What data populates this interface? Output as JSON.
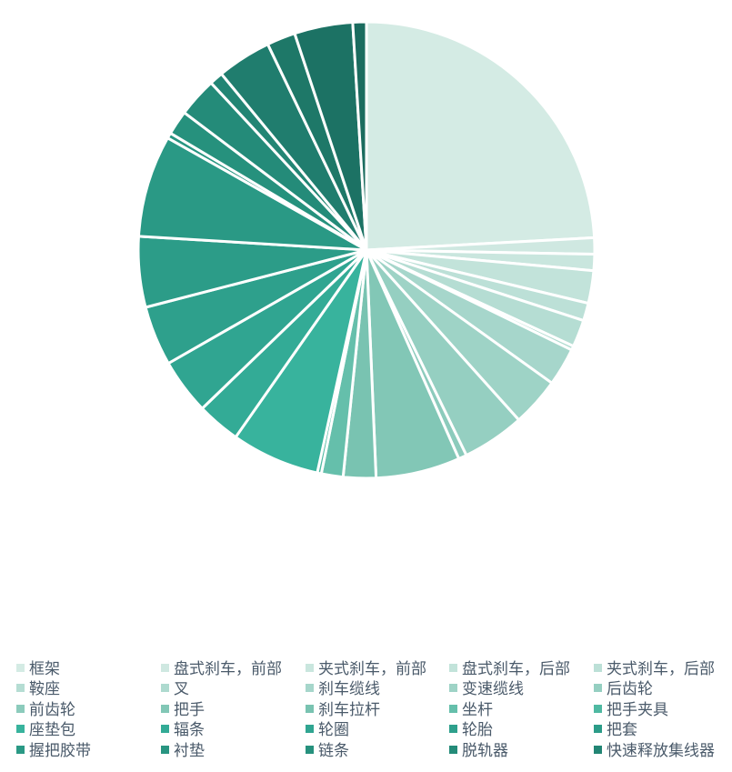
{
  "chart_data": {
    "type": "pie",
    "title": "",
    "start_angle": "12 o'clock",
    "direction": "clockwise",
    "legend_position": "bottom",
    "slices": [
      {
        "label": "框架",
        "value": 25.1,
        "color": "#d4ebe4"
      },
      {
        "label": "盘式刹车，前部",
        "value": 1.2,
        "color": "#cfe8e1"
      },
      {
        "label": "夹式刹车，前部",
        "value": 1.2,
        "color": "#c9e6de"
      },
      {
        "label": "盘式刹车，后部",
        "value": 2.4,
        "color": "#c2e3da"
      },
      {
        "label": "夹式刹车，后部",
        "value": 1.3,
        "color": "#bce0d7"
      },
      {
        "label": "鞍座",
        "value": 2.0,
        "color": "#b5ddd3"
      },
      {
        "label": "叉",
        "value": 0.3,
        "color": "#aedacf"
      },
      {
        "label": "刹车缆线",
        "value": 2.8,
        "color": "#a6d6cb"
      },
      {
        "label": "变速缆线",
        "value": 3.6,
        "color": "#9ed3c6"
      },
      {
        "label": "后齿轮",
        "value": 4.6,
        "color": "#95cfc1"
      },
      {
        "label": "前齿轮",
        "value": 0.6,
        "color": "#8ccbbc"
      },
      {
        "label": "把手",
        "value": 6.2,
        "color": "#82c7b6"
      },
      {
        "label": "刹车拉杆",
        "value": 2.4,
        "color": "#79c3b1"
      },
      {
        "label": "坐杆",
        "value": 1.6,
        "color": "#65bfab"
      },
      {
        "label": "把手夹具",
        "value": 0.3,
        "color": "#4fb9a2"
      },
      {
        "label": "座垫包",
        "value": 6.5,
        "color": "#38b39d"
      },
      {
        "label": "辐条",
        "value": 3.2,
        "color": "#33ab96"
      },
      {
        "label": "轮圈",
        "value": 4.1,
        "color": "#30a591"
      },
      {
        "label": "轮胎",
        "value": 4.4,
        "color": "#2ea08c"
      },
      {
        "label": "把套",
        "value": 5.2,
        "color": "#2c9c88"
      },
      {
        "label": "握把胶带",
        "value": 7.5,
        "color": "#2a9985"
      },
      {
        "label": "衬垫",
        "value": 0.4,
        "color": "#289581"
      },
      {
        "label": "链条",
        "value": 1.8,
        "color": "#26917d"
      },
      {
        "label": "脱轨器",
        "value": 2.9,
        "color": "#248b79"
      },
      {
        "label": "快速释放集线器",
        "value": 1.0,
        "color": "#228574"
      },
      {
        "label": "",
        "value": 4.0,
        "color": "#207d6e"
      },
      {
        "label": "",
        "value": 2.1,
        "color": "#1e7868"
      },
      {
        "label": "",
        "value": 4.3,
        "color": "#1c7264"
      },
      {
        "label": "",
        "value": 1.0,
        "color": "#1b6c5f"
      }
    ]
  }
}
